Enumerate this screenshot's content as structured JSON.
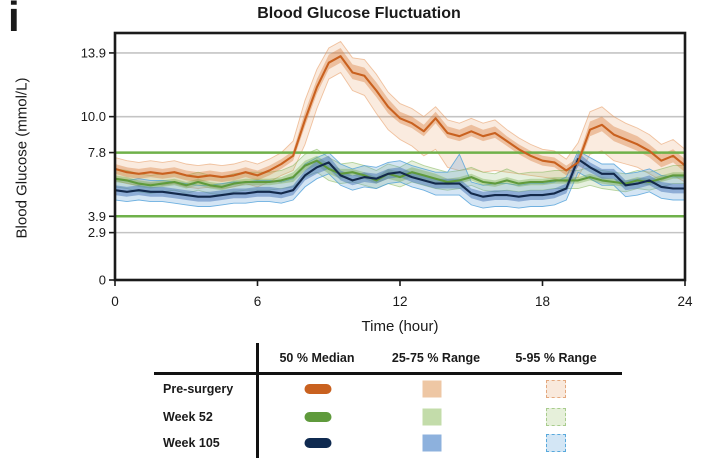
{
  "panel_label": "i",
  "title": "Blood Glucose Fluctuation",
  "axes": {
    "y_label": "Blood Glucose (mmol/L)",
    "x_label": "Time (hour)",
    "y_ticks": [
      {
        "label": "13.9",
        "value": 13.9
      },
      {
        "label": "10.0",
        "value": 10.0
      },
      {
        "label": "7.8",
        "value": 7.8
      },
      {
        "label": "3.9",
        "value": 3.9
      },
      {
        "label": "2.9",
        "value": 2.9
      },
      {
        "label": "0",
        "value": 0
      }
    ],
    "x_ticks": [
      {
        "label": "0",
        "value": 0
      },
      {
        "label": "6",
        "value": 6
      },
      {
        "label": "12",
        "value": 12
      },
      {
        "label": "18",
        "value": 18
      },
      {
        "label": "24",
        "value": 24
      }
    ]
  },
  "chart_data": {
    "type": "line",
    "title": "Blood Glucose Fluctuation",
    "xlabel": "Time (hour)",
    "ylabel": "Blood Glucose (mmol/L)",
    "xlim": [
      0,
      24
    ],
    "ylim": [
      0,
      15.12
    ],
    "grid": "horizontal-only",
    "legend_position": "bottom-table",
    "x_start": 0,
    "x_step": 0.5,
    "gridlines_y": [
      13.9,
      10.0,
      2.9
    ],
    "gridline_color": "#c4c4c4",
    "reference_lines_y": [
      7.8,
      3.9
    ],
    "reference_line_color": "#6fb14a",
    "series": [
      {
        "name": "Pre-surgery",
        "line_color": "#c9611f",
        "band50_fill": "rgba(216,120,52,0.38)",
        "band90_fill": "rgba(224,136,66,0.17)",
        "band90_edge": "rgba(230,152,92,0.55)",
        "median": [
          6.8,
          6.6,
          6.5,
          6.6,
          6.5,
          6.6,
          6.4,
          6.3,
          6.4,
          6.3,
          6.4,
          6.6,
          6.4,
          6.7,
          7.1,
          7.6,
          9.8,
          11.8,
          13.3,
          13.7,
          12.7,
          12.5,
          11.6,
          10.6,
          9.9,
          9.6,
          9.1,
          9.9,
          9.0,
          8.8,
          9.1,
          8.8,
          9.0,
          8.5,
          8.0,
          7.6,
          7.3,
          7.2,
          6.7,
          7.2,
          9.2,
          9.5,
          8.9,
          8.6,
          8.3,
          7.9,
          7.3,
          7.6,
          7.0
        ],
        "p25": [
          6.5,
          6.3,
          6.2,
          6.3,
          6.2,
          6.3,
          6.1,
          6.0,
          6.1,
          6.0,
          6.1,
          6.3,
          6.1,
          6.4,
          6.8,
          7.3,
          9.4,
          11.4,
          12.9,
          13.3,
          12.3,
          12.1,
          11.2,
          10.2,
          9.6,
          9.3,
          8.8,
          9.6,
          8.7,
          8.5,
          8.8,
          8.5,
          8.7,
          8.2,
          7.7,
          7.3,
          7.0,
          6.9,
          6.4,
          6.9,
          8.8,
          9.1,
          8.5,
          8.2,
          7.9,
          7.5,
          6.9,
          7.2,
          6.6
        ],
        "p75": [
          7.1,
          6.9,
          6.8,
          6.9,
          6.8,
          6.9,
          6.7,
          6.6,
          6.7,
          6.6,
          6.7,
          6.9,
          6.7,
          7.0,
          7.4,
          7.9,
          10.3,
          12.3,
          13.8,
          14.2,
          13.2,
          13.0,
          12.1,
          11.1,
          10.3,
          10.0,
          9.5,
          10.3,
          9.4,
          9.2,
          9.5,
          9.2,
          9.4,
          8.8,
          8.3,
          7.9,
          7.6,
          7.5,
          7.0,
          7.5,
          9.7,
          10.0,
          9.4,
          9.1,
          8.8,
          8.3,
          7.7,
          8.0,
          7.4
        ],
        "p05": [
          6.1,
          5.9,
          5.8,
          5.9,
          5.8,
          5.9,
          5.7,
          5.6,
          5.7,
          5.6,
          5.7,
          5.9,
          5.7,
          6.0,
          6.4,
          6.7,
          8.3,
          10.5,
          12.3,
          12.7,
          11.6,
          11.3,
          10.2,
          9.2,
          8.6,
          8.2,
          7.6,
          8.0,
          6.9,
          6.7,
          6.8,
          6.6,
          6.7,
          6.6,
          6.5,
          6.4,
          6.3,
          6.2,
          6.0,
          6.3,
          7.7,
          7.9,
          7.3,
          7.1,
          6.9,
          6.5,
          6.1,
          6.4,
          6.0
        ],
        "p95": [
          7.5,
          7.3,
          7.2,
          7.3,
          7.2,
          7.3,
          7.1,
          7.0,
          7.1,
          7.0,
          7.1,
          7.3,
          7.1,
          7.4,
          7.8,
          8.5,
          11.0,
          12.9,
          14.2,
          14.6,
          13.6,
          13.5,
          12.6,
          11.5,
          10.8,
          10.5,
          10.0,
          10.6,
          9.8,
          9.6,
          9.9,
          9.6,
          9.8,
          9.2,
          8.7,
          8.3,
          8.0,
          7.9,
          7.4,
          8.4,
          10.3,
          10.6,
          10.0,
          9.6,
          9.3,
          8.9,
          8.3,
          8.6,
          8.0
        ]
      },
      {
        "name": "Week 52",
        "line_color": "#5f9a3c",
        "band50_fill": "rgba(112,168,70,0.38)",
        "band90_fill": "rgba(130,180,90,0.20)",
        "band90_edge": "rgba(140,186,102,0.6)",
        "median": [
          6.2,
          6.1,
          5.9,
          5.8,
          5.9,
          6.0,
          5.8,
          6.0,
          5.8,
          5.7,
          5.9,
          6.0,
          6.0,
          6.0,
          6.1,
          6.3,
          7.0,
          7.3,
          6.8,
          6.5,
          6.6,
          6.4,
          6.1,
          6.5,
          6.3,
          6.6,
          6.4,
          6.2,
          6.0,
          6.1,
          6.3,
          6.0,
          5.9,
          6.1,
          5.9,
          6.0,
          6.0,
          6.1,
          6.1,
          6.1,
          6.3,
          6.1,
          6.0,
          5.9,
          6.1,
          6.0,
          6.2,
          6.4,
          6.4
        ],
        "p25": [
          6.0,
          5.9,
          5.7,
          5.6,
          5.7,
          5.8,
          5.6,
          5.8,
          5.6,
          5.5,
          5.7,
          5.8,
          5.8,
          5.8,
          5.9,
          6.0,
          6.7,
          7.0,
          6.5,
          6.2,
          6.4,
          6.2,
          5.9,
          6.2,
          6.0,
          6.3,
          6.1,
          5.9,
          5.8,
          5.9,
          6.1,
          5.8,
          5.7,
          5.9,
          5.7,
          5.8,
          5.8,
          5.9,
          5.9,
          5.9,
          6.1,
          5.9,
          5.8,
          5.7,
          5.9,
          5.8,
          6.0,
          6.2,
          6.2
        ],
        "p75": [
          6.4,
          6.3,
          6.1,
          6.0,
          6.1,
          6.2,
          6.0,
          6.2,
          6.0,
          5.9,
          6.1,
          6.2,
          6.2,
          6.2,
          6.3,
          6.6,
          7.3,
          7.6,
          7.1,
          6.8,
          6.8,
          6.6,
          6.3,
          6.8,
          6.6,
          6.9,
          6.7,
          6.5,
          6.2,
          6.3,
          6.5,
          6.2,
          6.1,
          6.3,
          6.1,
          6.2,
          6.2,
          6.3,
          6.3,
          6.3,
          6.5,
          6.3,
          6.2,
          6.1,
          6.3,
          6.2,
          6.4,
          6.6,
          6.6
        ],
        "p05": [
          5.7,
          5.6,
          5.4,
          5.3,
          5.4,
          5.5,
          5.3,
          5.5,
          5.3,
          5.2,
          5.4,
          5.5,
          5.5,
          5.5,
          5.6,
          5.7,
          6.3,
          6.6,
          6.1,
          5.9,
          6.0,
          5.8,
          5.6,
          5.9,
          5.7,
          6.0,
          5.8,
          5.6,
          5.5,
          5.6,
          5.8,
          5.5,
          5.4,
          5.5,
          5.4,
          5.5,
          5.5,
          5.6,
          5.6,
          5.6,
          5.8,
          5.6,
          5.5,
          5.4,
          5.6,
          5.5,
          5.7,
          5.9,
          5.9
        ],
        "p95": [
          6.8,
          6.7,
          6.5,
          6.4,
          6.5,
          6.6,
          6.4,
          6.6,
          6.4,
          6.3,
          6.5,
          6.6,
          6.6,
          6.6,
          6.7,
          7.0,
          7.7,
          8.0,
          7.5,
          7.1,
          7.2,
          7.0,
          6.7,
          7.1,
          6.9,
          7.3,
          7.0,
          6.8,
          6.6,
          6.7,
          6.9,
          6.6,
          6.5,
          6.8,
          6.5,
          6.6,
          6.6,
          6.7,
          6.7,
          6.7,
          6.9,
          6.7,
          6.6,
          6.5,
          6.7,
          6.6,
          6.8,
          7.0,
          7.0
        ]
      },
      {
        "name": "Week 105",
        "line_color": "#13294b",
        "band50_fill": "rgba(72,118,184,0.50)",
        "band90_fill": "rgba(100,160,215,0.28)",
        "band90_edge": "rgba(80,160,218,0.8)",
        "median": [
          5.5,
          5.4,
          5.5,
          5.4,
          5.4,
          5.3,
          5.2,
          5.1,
          5.1,
          5.2,
          5.3,
          5.3,
          5.4,
          5.4,
          5.3,
          5.5,
          6.4,
          6.9,
          7.2,
          6.4,
          6.1,
          6.3,
          6.2,
          6.5,
          6.6,
          6.3,
          6.1,
          5.9,
          5.9,
          5.9,
          5.3,
          5.1,
          5.2,
          5.2,
          5.1,
          5.2,
          5.2,
          5.3,
          5.6,
          7.4,
          6.9,
          6.5,
          6.5,
          5.8,
          5.9,
          6.1,
          5.7,
          5.6,
          5.6
        ],
        "p25": [
          5.2,
          5.1,
          5.2,
          5.1,
          5.1,
          5.0,
          4.9,
          4.8,
          4.8,
          4.9,
          5.0,
          5.0,
          5.1,
          5.1,
          5.0,
          5.2,
          6.1,
          6.5,
          6.8,
          6.1,
          5.8,
          6.0,
          5.9,
          6.2,
          6.3,
          6.0,
          5.8,
          5.6,
          5.6,
          5.6,
          5.0,
          4.8,
          4.9,
          4.9,
          4.8,
          4.9,
          4.9,
          5.0,
          5.3,
          7.0,
          6.6,
          6.2,
          6.2,
          5.5,
          5.6,
          5.8,
          5.4,
          5.3,
          5.3
        ],
        "p75": [
          5.8,
          5.7,
          5.8,
          5.7,
          5.7,
          5.6,
          5.5,
          5.4,
          5.4,
          5.5,
          5.6,
          5.6,
          5.7,
          5.7,
          5.6,
          5.8,
          6.7,
          7.3,
          7.6,
          6.7,
          6.4,
          6.6,
          6.5,
          6.8,
          6.9,
          6.6,
          6.4,
          6.2,
          6.2,
          6.2,
          5.6,
          5.4,
          5.5,
          5.5,
          5.4,
          5.5,
          5.5,
          5.6,
          5.9,
          7.8,
          7.2,
          6.8,
          6.8,
          6.1,
          6.2,
          6.4,
          6.0,
          5.9,
          5.9
        ],
        "p05": [
          4.9,
          4.8,
          4.9,
          4.8,
          4.8,
          4.7,
          4.6,
          4.5,
          4.5,
          4.6,
          4.7,
          4.7,
          4.8,
          4.8,
          4.7,
          4.9,
          5.7,
          6.2,
          6.5,
          5.8,
          5.5,
          5.7,
          5.6,
          5.9,
          6.0,
          5.7,
          5.5,
          5.2,
          5.2,
          5.2,
          4.6,
          4.4,
          4.5,
          4.5,
          4.4,
          4.5,
          4.5,
          4.6,
          4.9,
          6.6,
          6.2,
          5.8,
          5.8,
          5.1,
          5.2,
          5.4,
          5.0,
          4.9,
          4.9
        ],
        "p95": [
          6.2,
          6.1,
          6.2,
          6.1,
          6.1,
          6.0,
          5.9,
          5.8,
          5.8,
          5.9,
          6.0,
          6.0,
          6.1,
          6.1,
          6.0,
          6.2,
          7.1,
          7.5,
          7.8,
          7.1,
          6.8,
          7.0,
          6.9,
          7.2,
          7.3,
          7.0,
          6.8,
          6.6,
          6.6,
          7.7,
          6.0,
          5.8,
          5.9,
          5.9,
          5.8,
          5.9,
          5.9,
          6.0,
          6.3,
          7.9,
          7.5,
          7.1,
          7.1,
          6.5,
          6.6,
          6.8,
          6.4,
          6.3,
          6.3
        ]
      }
    ]
  },
  "legend": {
    "columns": [
      "50 % Median",
      "25-75 % Range",
      "5-95 % Range"
    ],
    "rows": [
      {
        "label": "Pre-surgery",
        "median_color": "#c9611f",
        "band50_color": "#eec7a4",
        "band90_fill": "#f9e9dc",
        "band90_border": "#e4a87e"
      },
      {
        "label": "Week 52",
        "median_color": "#5f9a3c",
        "band50_color": "#c3dcaa",
        "band90_fill": "#e6f0da",
        "band90_border": "#a8cc8d"
      },
      {
        "label": "Week 105",
        "median_color": "#0f2a50",
        "band50_color": "#8db1dd",
        "band90_fill": "#d3e6f5",
        "band90_border": "#58a9dc"
      }
    ]
  }
}
